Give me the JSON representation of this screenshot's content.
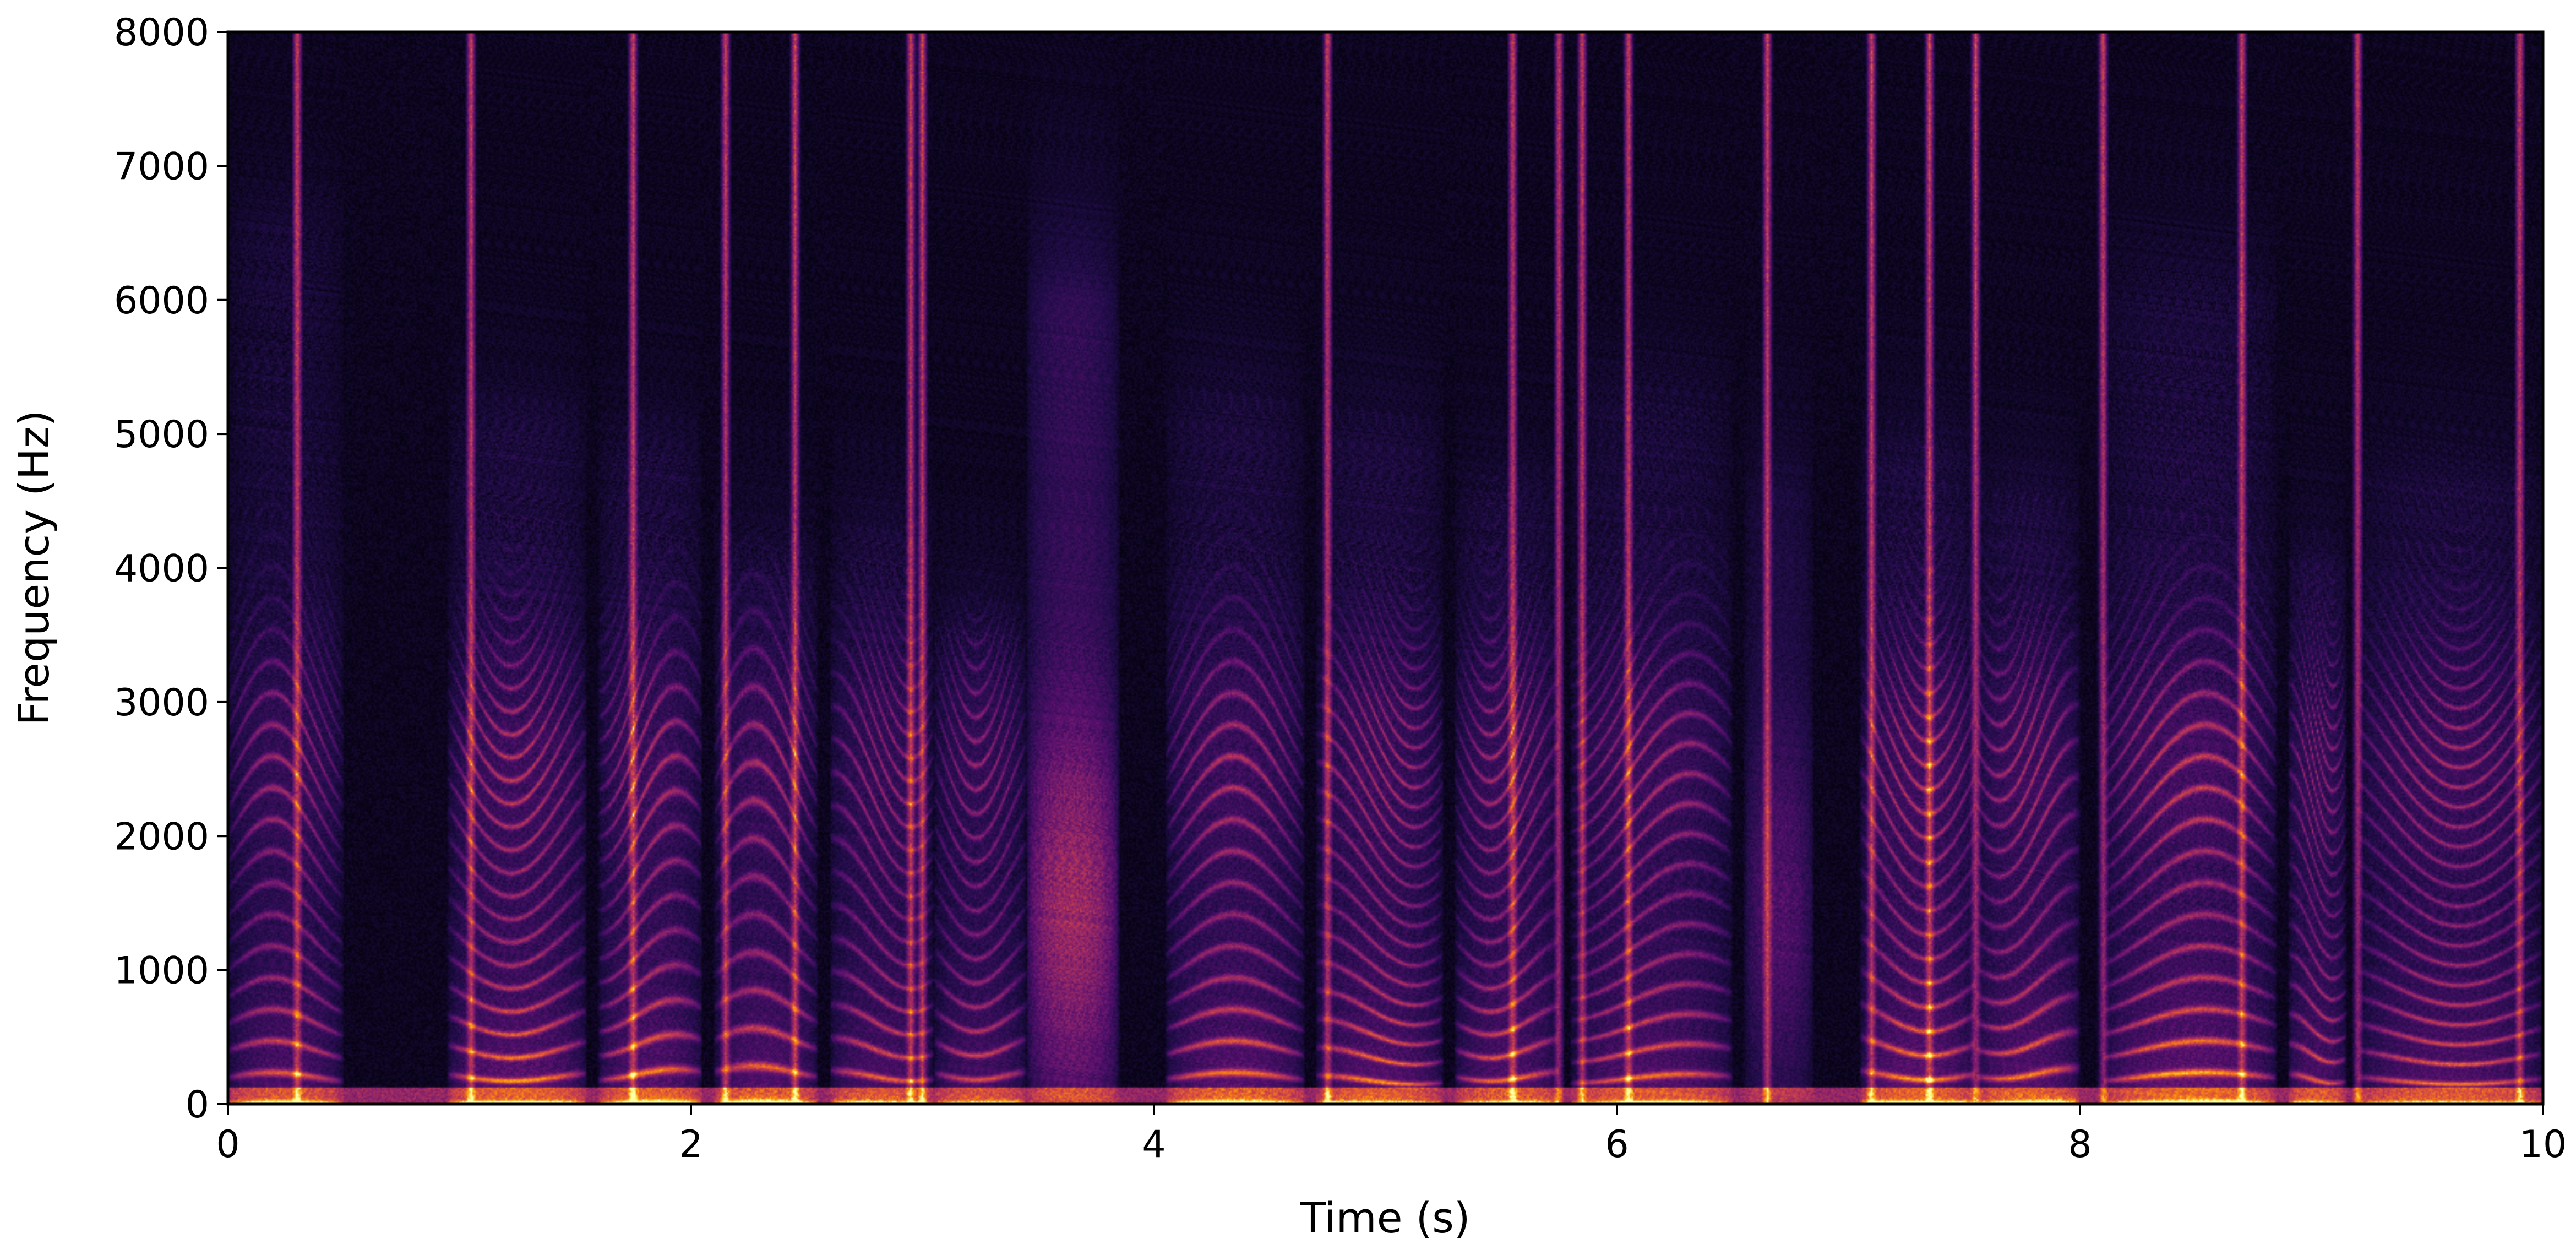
{
  "chart_data": {
    "type": "heatmap",
    "title": "",
    "xlabel": "Time (s)",
    "ylabel": "Frequency (Hz)",
    "xlim": [
      0,
      10
    ],
    "ylim": [
      0,
      8000
    ],
    "xticks": [
      0,
      2,
      4,
      6,
      8,
      10
    ],
    "yticks": [
      0,
      1000,
      2000,
      3000,
      4000,
      5000,
      6000,
      7000,
      8000
    ],
    "xtick_labels": [
      "0",
      "2",
      "4",
      "6",
      "8",
      "10"
    ],
    "ytick_labels": [
      "0",
      "1000",
      "2000",
      "3000",
      "4000",
      "5000",
      "6000",
      "7000",
      "8000"
    ],
    "colormap": "inferno",
    "grid": false,
    "legend": "none",
    "segments": [
      {
        "start": 0.0,
        "end": 0.5,
        "type": "voiced",
        "f0": 200,
        "max_freq": 6500,
        "intensity": 0.75
      },
      {
        "start": 0.95,
        "end": 1.55,
        "type": "voiced",
        "f0": 210,
        "max_freq": 5000,
        "intensity": 0.9
      },
      {
        "start": 1.6,
        "end": 2.05,
        "type": "voiced",
        "f0": 220,
        "max_freq": 4800,
        "intensity": 0.85
      },
      {
        "start": 2.1,
        "end": 2.55,
        "type": "voiced",
        "f0": 240,
        "max_freq": 4000,
        "intensity": 0.8
      },
      {
        "start": 2.6,
        "end": 3.05,
        "type": "voiced",
        "f0": 210,
        "max_freq": 4200,
        "intensity": 0.75
      },
      {
        "start": 3.05,
        "end": 3.45,
        "type": "voiced",
        "f0": 220,
        "max_freq": 3500,
        "intensity": 0.7
      },
      {
        "start": 3.45,
        "end": 3.85,
        "type": "fricative",
        "f0": 0,
        "max_freq": 6000,
        "intensity": 0.7
      },
      {
        "start": 4.05,
        "end": 4.65,
        "type": "voiced",
        "f0": 200,
        "max_freq": 5200,
        "intensity": 0.85
      },
      {
        "start": 4.7,
        "end": 5.25,
        "type": "voiced",
        "f0": 180,
        "max_freq": 5000,
        "intensity": 0.85
      },
      {
        "start": 5.3,
        "end": 5.75,
        "type": "voiced",
        "f0": 210,
        "max_freq": 4500,
        "intensity": 0.8
      },
      {
        "start": 5.8,
        "end": 6.5,
        "type": "voiced",
        "f0": 190,
        "max_freq": 5200,
        "intensity": 0.8
      },
      {
        "start": 6.55,
        "end": 6.85,
        "type": "fricative",
        "f0": 0,
        "max_freq": 4500,
        "intensity": 0.35
      },
      {
        "start": 7.05,
        "end": 7.55,
        "type": "voiced",
        "f0": 220,
        "max_freq": 4800,
        "intensity": 0.9
      },
      {
        "start": 7.55,
        "end": 8.0,
        "type": "voiced",
        "f0": 230,
        "max_freq": 4500,
        "intensity": 0.85
      },
      {
        "start": 8.1,
        "end": 8.85,
        "type": "voiced",
        "f0": 200,
        "max_freq": 6000,
        "intensity": 0.95
      },
      {
        "start": 8.9,
        "end": 9.15,
        "type": "voiced",
        "f0": 190,
        "max_freq": 4000,
        "intensity": 0.75
      },
      {
        "start": 9.2,
        "end": 10.0,
        "type": "voiced",
        "f0": 180,
        "max_freq": 4600,
        "intensity": 0.8
      }
    ],
    "bursts": [
      0.3,
      1.05,
      1.75,
      2.15,
      2.45,
      2.95,
      3.0,
      4.75,
      5.55,
      5.75,
      5.85,
      6.05,
      6.65,
      7.1,
      7.35,
      7.55,
      8.1,
      8.7,
      9.2,
      9.9
    ]
  }
}
